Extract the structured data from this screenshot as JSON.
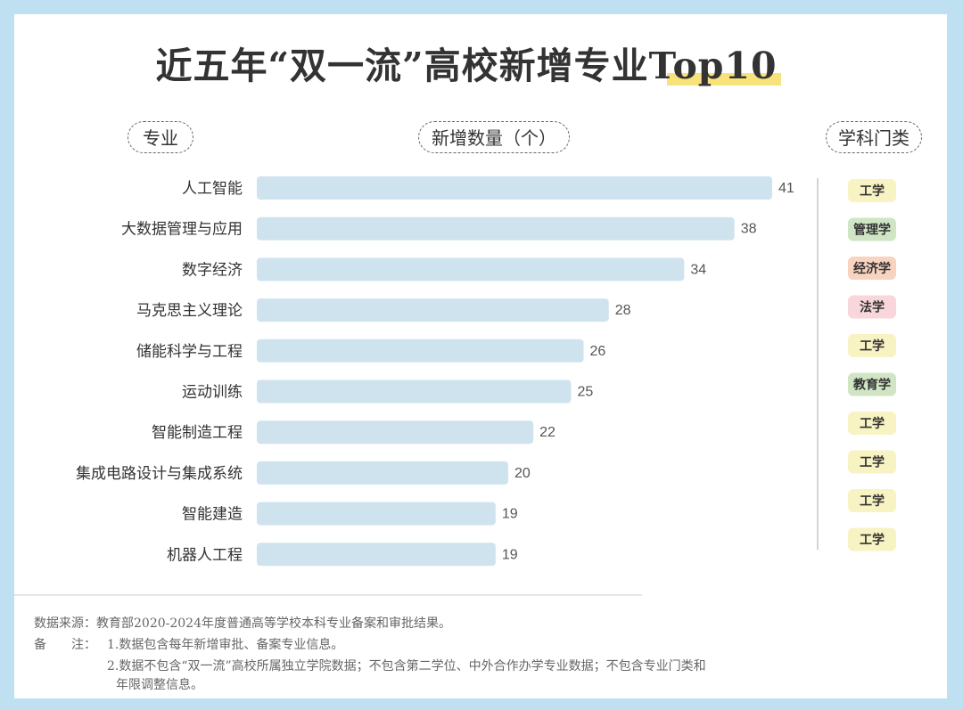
{
  "title": "近五年“双一流”高校新增专业Top10",
  "headers": {
    "major": "专业",
    "count": "新增数量（个）",
    "category": "学科门类"
  },
  "category_colors": {
    "工学": "#f8f3c2",
    "管理学": "#cfe5c3",
    "经济学": "#f8d3bf",
    "法学": "#f8d6da",
    "教育学": "#cfe5c3"
  },
  "bar_color": "#cfe3ee",
  "chart_data": {
    "type": "bar",
    "orientation": "horizontal",
    "categories": [
      "人工智能",
      "大数据管理与应用",
      "数字经济",
      "马克思主义理论",
      "储能科学与工程",
      "运动训练",
      "智能制造工程",
      "集成电路设计与集成系统",
      "智能建造",
      "机器人工程"
    ],
    "values": [
      41,
      38,
      34,
      28,
      26,
      25,
      22,
      20,
      19,
      19
    ],
    "disciplines": [
      "工学",
      "管理学",
      "经济学",
      "法学",
      "工学",
      "教育学",
      "工学",
      "工学",
      "工学",
      "工学"
    ],
    "xlim": [
      0,
      41
    ]
  },
  "footer": {
    "source": "数据来源：教育部2020-2024年度普通高等学校本科专业备案和审批结果。",
    "note_label": "备　　注：",
    "note1": "1.数据包含每年新增审批、备案专业信息。",
    "note2a": "2.数据不包含“双一流”高校所属独立学院数据；不包含第二学位、中外合作办学专业数据；不包含专业门类和",
    "note2b": "年限调整信息。"
  }
}
